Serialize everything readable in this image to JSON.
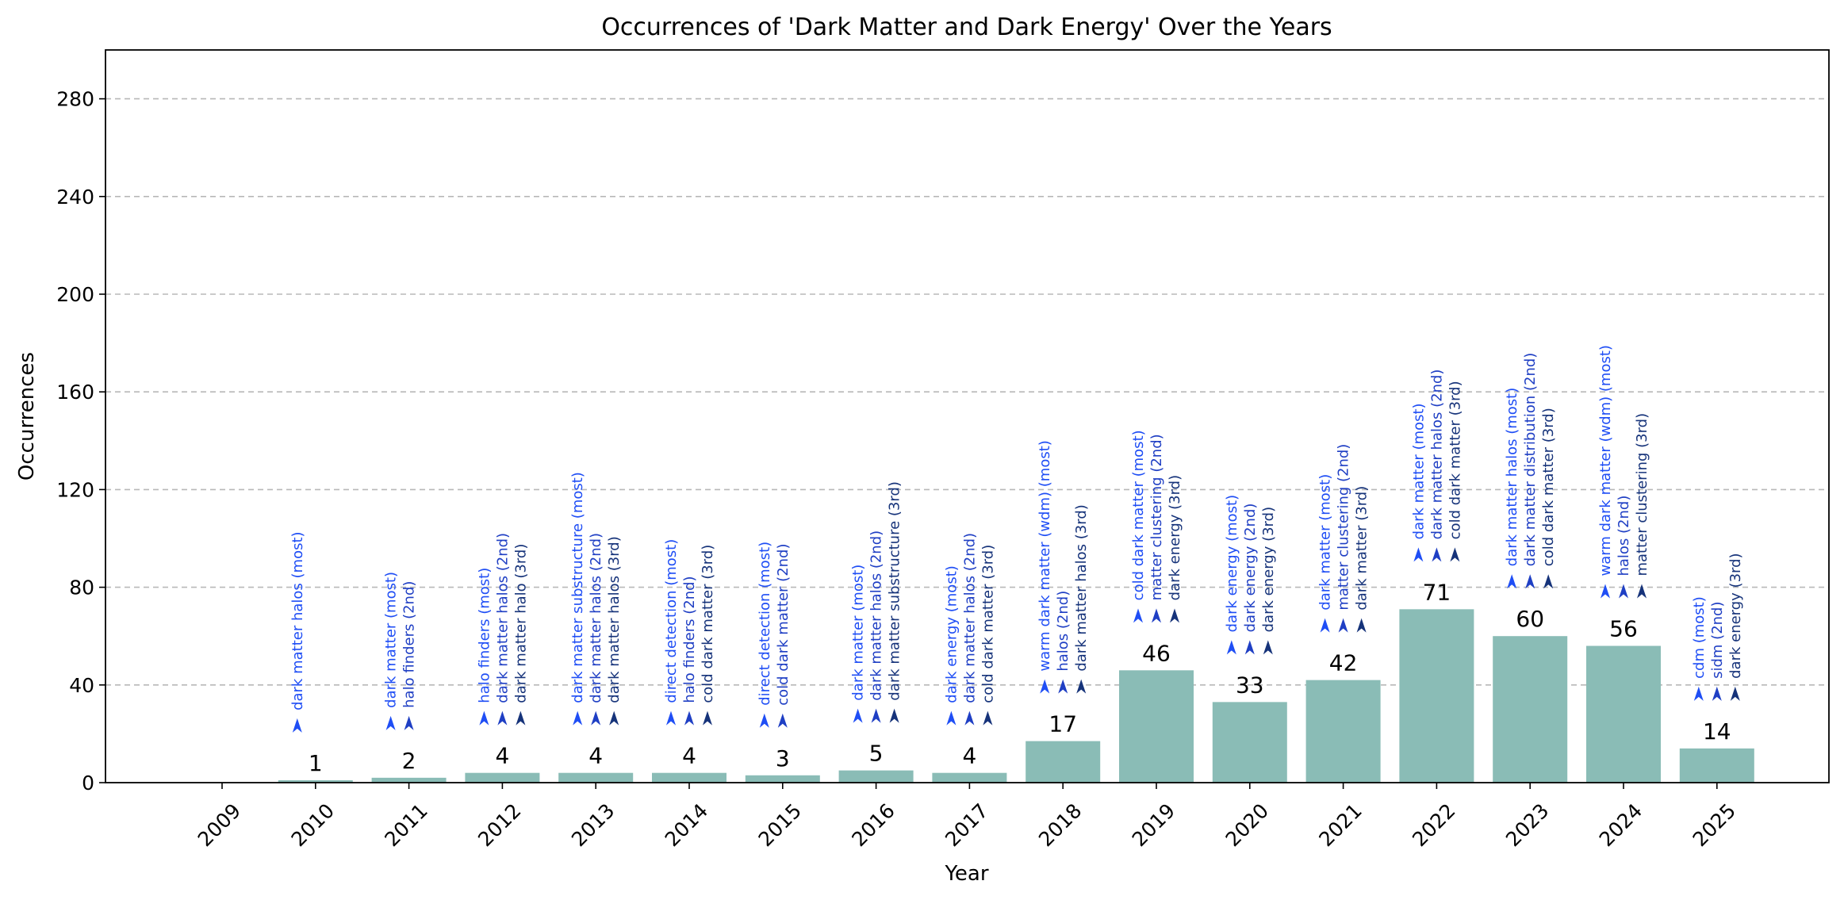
{
  "chart_data": {
    "type": "bar",
    "title": "Occurrences of 'Dark Matter and Dark Energy' Over the Years",
    "xlabel": "Year",
    "ylabel": "Occurrences",
    "ylim": [
      0,
      300
    ],
    "yticks": [
      0,
      40,
      80,
      120,
      160,
      200,
      240,
      280
    ],
    "grid": "y-dashed",
    "bar_color": "#8abcb6",
    "annotation_colors": [
      "#1f4ef5",
      "#1f3fc4",
      "#16337a"
    ],
    "categories": [
      "2009",
      "2010",
      "2011",
      "2012",
      "2013",
      "2014",
      "2015",
      "2016",
      "2017",
      "2018",
      "2019",
      "2020",
      "2021",
      "2022",
      "2023",
      "2024",
      "2025"
    ],
    "values": [
      0,
      1,
      2,
      4,
      4,
      4,
      3,
      5,
      4,
      17,
      46,
      33,
      42,
      71,
      60,
      56,
      14
    ],
    "value_labels": [
      "",
      "1",
      "2",
      "4",
      "4",
      "4",
      "3",
      "5",
      "4",
      "17",
      "46",
      "33",
      "42",
      "71",
      "60",
      "56",
      "14"
    ],
    "top_terms": [
      [],
      [
        "dark matter halos (most)"
      ],
      [
        "dark matter (most)",
        "halo finders (2nd)"
      ],
      [
        "halo finders (most)",
        "dark matter halos (2nd)",
        "dark matter halo (3rd)"
      ],
      [
        "dark matter substructure (most)",
        "dark matter halos (2nd)",
        "dark matter halos (3rd)"
      ],
      [
        "direct detection (most)",
        "halo finders (2nd)",
        "cold dark matter (3rd)"
      ],
      [
        "direct detection (most)",
        "cold dark matter (2nd)"
      ],
      [
        "dark matter (most)",
        "dark matter halos (2nd)",
        "dark matter substructure (3rd)"
      ],
      [
        "dark energy (most)",
        "dark matter halos (2nd)",
        "cold dark matter (3rd)"
      ],
      [
        "warm dark matter (wdm) (most)",
        "halos (2nd)",
        "dark matter halos (3rd)"
      ],
      [
        "cold dark matter (most)",
        "matter clustering (2nd)",
        "dark energy (3rd)"
      ],
      [
        "dark energy (most)",
        "dark energy (2nd)",
        "dark energy (3rd)"
      ],
      [
        "dark matter (most)",
        "matter clustering (2nd)",
        "dark matter (3rd)"
      ],
      [
        "dark matter (most)",
        "dark matter halos (2nd)",
        "cold dark matter (3rd)"
      ],
      [
        "dark matter halos (most)",
        "dark matter distribution (2nd)",
        "cold dark matter (3rd)"
      ],
      [
        "warm dark matter (wdm) (most)",
        "halos (2nd)",
        "matter clustering (3rd)"
      ],
      [
        "cdm (most)",
        "sidm (2nd)",
        "dark energy (3rd)"
      ]
    ]
  }
}
